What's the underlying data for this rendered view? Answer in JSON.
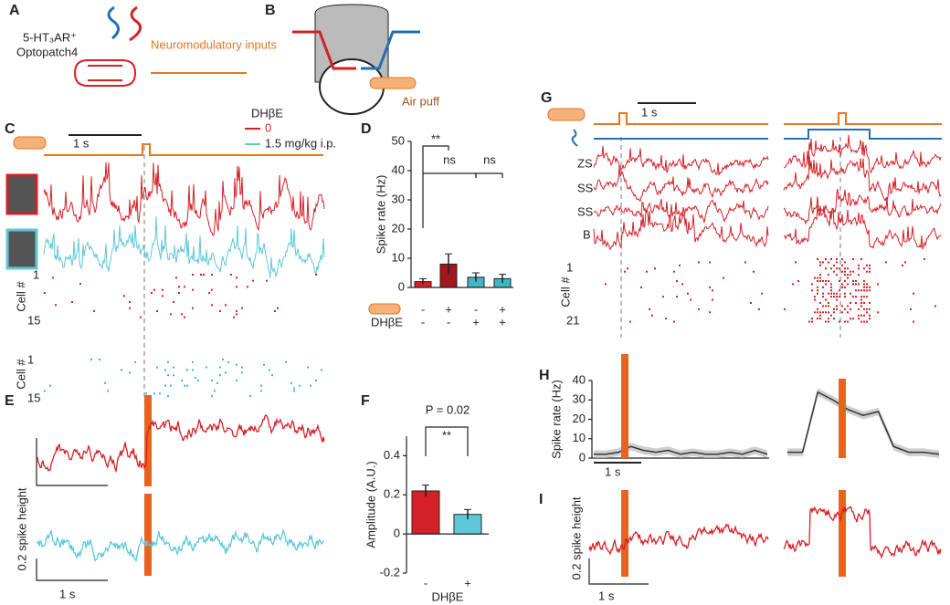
{
  "panels": {
    "A": {
      "label": "A",
      "cell": "5-HT₃AR⁺",
      "reporter": "Optopatch4",
      "inputs": "Neuromodulatory inputs"
    },
    "B": {
      "label": "B",
      "stimulus": "Air puff"
    },
    "C": {
      "label": "C",
      "scale": "1 s",
      "drug": "DHβE",
      "dose0": "0",
      "dose1": "1.5 mg/kg i.p.",
      "cell_axis": "Cell #",
      "cell_first": "1",
      "cell_last": "15"
    },
    "D": {
      "label": "D",
      "chart": {
        "type": "bar",
        "ylabel": "Spike rate (Hz)",
        "ylim": [
          0,
          50
        ],
        "yticks": [
          0,
          10,
          20,
          30,
          40,
          50
        ],
        "values": [
          2,
          8,
          3.5,
          3
        ],
        "errors": [
          1,
          3.5,
          1.5,
          1.5
        ],
        "colors": [
          "#d42027",
          "#a3161b",
          "#3fb7c4",
          "#3fb7c4"
        ],
        "puff": [
          "-",
          "+",
          "-",
          "+"
        ],
        "drug_label": "DHβE",
        "drug": [
          "-",
          "-",
          "+",
          "+"
        ],
        "sig": [
          "**",
          "ns",
          "ns"
        ]
      }
    },
    "E": {
      "label": "E",
      "scale": "1 s",
      "ylabel": "0.2 spike height"
    },
    "F": {
      "label": "F",
      "chart": {
        "type": "bar",
        "ylabel": "Amplitude (A.U.)",
        "ylim": [
          -0.2,
          0.5
        ],
        "yticks": [
          -0.2,
          0,
          0.2,
          0.4
        ],
        "categories": [
          "-",
          "+"
        ],
        "values": [
          0.22,
          0.1
        ],
        "errors": [
          0.03,
          0.025
        ],
        "colors": [
          "#d42027",
          "#5ec8d8"
        ],
        "xlabel": "DHβE",
        "p": "P = 0.02",
        "sig": "**"
      }
    },
    "G": {
      "label": "G",
      "scale": "1 s",
      "rows": [
        "ZS",
        "SS",
        "SS",
        "B"
      ],
      "cell_axis": "Cell #",
      "cell_first": "1",
      "cell_last": "21"
    },
    "H": {
      "label": "H",
      "chart": {
        "type": "line",
        "ylabel": "Spike rate (Hz)",
        "ylim": [
          0,
          40
        ],
        "yticks": [
          0,
          10,
          20,
          30,
          40
        ],
        "scale": "1 s",
        "series": [
          {
            "color": "#333333",
            "values": [
              2,
              2,
              3,
              6,
              4,
              3,
              4,
              2,
              3,
              2,
              2,
              3,
              2,
              4,
              2
            ]
          },
          {
            "color": "#333333",
            "values": [
              3,
              3,
              34,
              30,
              25,
              22,
              24,
              6,
              3,
              3,
              2
            ]
          }
        ]
      }
    },
    "I": {
      "label": "I",
      "scale": "1 s",
      "ylabel": "0.2 spike height"
    }
  }
}
